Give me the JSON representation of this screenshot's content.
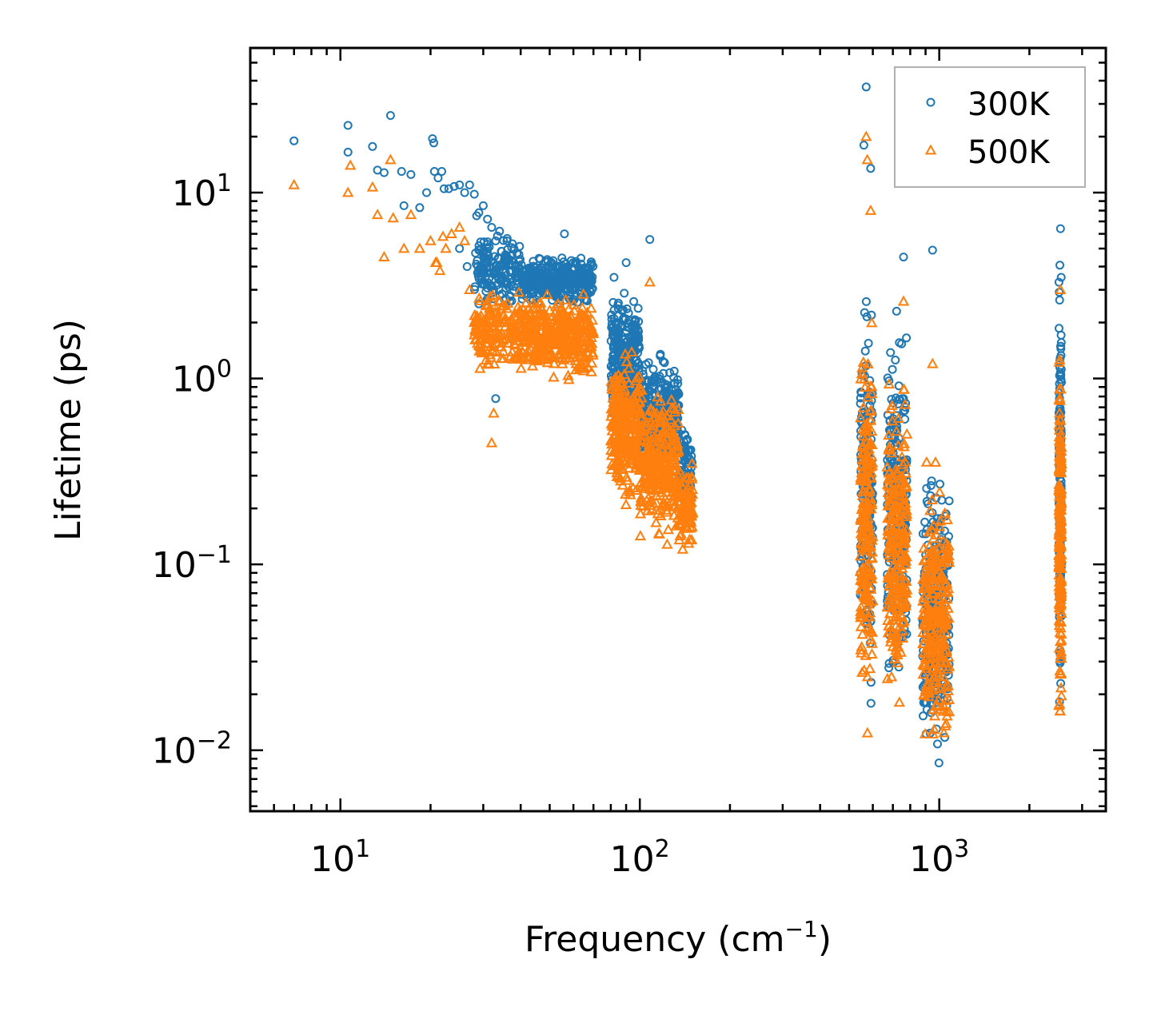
{
  "chart_data": {
    "type": "scatter",
    "title": "",
    "xlabel": {
      "base": "Frequency (cm",
      "sup": "−1",
      "tail": ")"
    },
    "ylabel": "Lifetime (ps)",
    "xscale": "log",
    "yscale": "log",
    "xlim": [
      5,
      3600
    ],
    "ylim": [
      0.0047,
      60
    ],
    "xticks": [
      {
        "value": 10,
        "base": "10",
        "exp": "1"
      },
      {
        "value": 100,
        "base": "10",
        "exp": "2"
      },
      {
        "value": 1000,
        "base": "10",
        "exp": "3"
      }
    ],
    "yticks": [
      {
        "value": 10,
        "base": "10",
        "exp": "1"
      },
      {
        "value": 1,
        "base": "10",
        "exp": "0"
      },
      {
        "value": 0.1,
        "base": "10",
        "exp": "−1"
      },
      {
        "value": 0.01,
        "base": "10",
        "exp": "−2"
      }
    ],
    "legend": {
      "position": "top-right"
    },
    "series": [
      {
        "name": "300K",
        "marker": "circle",
        "color": "#1f77b4",
        "points": [
          [
            7.0,
            19.0
          ],
          [
            10.6,
            23.0
          ],
          [
            10.6,
            16.5
          ],
          [
            12.8,
            17.7
          ],
          [
            13.3,
            13.2
          ],
          [
            14.0,
            12.8
          ],
          [
            14.7,
            26.0
          ],
          [
            16.0,
            13.0
          ],
          [
            16.3,
            8.5
          ],
          [
            17.2,
            12.5
          ],
          [
            18.4,
            8.3
          ],
          [
            19.4,
            10.0
          ],
          [
            20.3,
            19.5
          ],
          [
            20.5,
            18.5
          ],
          [
            20.6,
            13.0
          ],
          [
            21.2,
            12.0
          ],
          [
            21.8,
            13.0
          ],
          [
            22.2,
            10.5
          ],
          [
            23.0,
            10.5
          ],
          [
            24.0,
            10.8
          ],
          [
            25.0,
            11.0
          ],
          [
            26.0,
            10.0
          ],
          [
            27.0,
            11.0
          ],
          [
            28.0,
            9.8
          ],
          [
            28.5,
            7.5
          ],
          [
            29.0,
            7.8
          ],
          [
            30.0,
            8.5
          ],
          [
            31.0,
            7.2
          ],
          [
            32.0,
            6.5
          ],
          [
            33.0,
            5.5
          ],
          [
            34.0,
            6.2
          ],
          [
            36.0,
            5.5
          ],
          [
            38.0,
            5.0
          ],
          [
            33.0,
            0.78
          ],
          [
            25.0,
            5.0
          ],
          [
            26.5,
            4.0
          ],
          [
            30.5,
            3.5
          ],
          [
            32.5,
            3.0
          ]
        ],
        "bands": [
          {
            "x_min": 28,
            "x_max": 40,
            "y_min": 2.2,
            "y_max": 6.5,
            "count": 160
          },
          {
            "x_min": 40,
            "x_max": 70,
            "y_min": 2.4,
            "y_max": 4.8,
            "count": 380
          },
          {
            "x_min": 80,
            "x_max": 100,
            "y_min": 0.45,
            "y_max": 3.3,
            "count": 280
          },
          {
            "x_min": 100,
            "x_max": 135,
            "y_min": 0.3,
            "y_max": 1.5,
            "count": 300
          },
          {
            "x_min": 135,
            "x_max": 150,
            "y_min": 0.15,
            "y_max": 0.65,
            "count": 80
          },
          {
            "x_min": 545,
            "x_max": 600,
            "y_min": 0.012,
            "y_max": 4.7,
            "count": 180
          },
          {
            "x_min": 670,
            "x_max": 780,
            "y_min": 0.014,
            "y_max": 2.7,
            "count": 230
          },
          {
            "x_min": 880,
            "x_max": 1080,
            "y_min": 0.0065,
            "y_max": 0.5,
            "count": 260
          },
          {
            "x_min": 2510,
            "x_max": 2560,
            "y_min": 0.009,
            "y_max": 6.3,
            "count": 170
          }
        ],
        "extra_points": [
          [
            56,
            6.0
          ],
          [
            108,
            5.6
          ],
          [
            90,
            4.2
          ],
          [
            82,
            3.5
          ],
          [
            570,
            37
          ],
          [
            590,
            13.5
          ],
          [
            560,
            18
          ],
          [
            720,
            2.3
          ],
          [
            760,
            4.5
          ],
          [
            950,
            4.9
          ],
          [
            2540,
            6.4
          ]
        ]
      },
      {
        "name": "500K",
        "marker": "triangle",
        "color": "#ff7f0e",
        "points": [
          [
            7.0,
            11.0
          ],
          [
            10.6,
            10.0
          ],
          [
            10.8,
            14.0
          ],
          [
            12.8,
            10.7
          ],
          [
            13.3,
            7.6
          ],
          [
            14.0,
            4.5
          ],
          [
            14.7,
            15.0
          ],
          [
            15.0,
            7.3
          ],
          [
            16.3,
            5.0
          ],
          [
            17.2,
            7.6
          ],
          [
            18.4,
            5.0
          ],
          [
            20.0,
            5.5
          ],
          [
            21.0,
            4.2
          ],
          [
            22.0,
            5.8
          ],
          [
            22.5,
            5.0
          ],
          [
            23.5,
            6.0
          ],
          [
            25.0,
            6.5
          ],
          [
            26.0,
            5.5
          ],
          [
            27.0,
            3.0
          ],
          [
            28.0,
            2.0
          ],
          [
            29.0,
            1.5
          ],
          [
            30.0,
            2.0
          ],
          [
            31.0,
            1.2
          ],
          [
            32.0,
            0.45
          ],
          [
            32.5,
            0.65
          ],
          [
            21.5,
            3.8
          ],
          [
            20.8,
            4.2
          ]
        ],
        "bands": [
          {
            "x_min": 28,
            "x_max": 40,
            "y_min": 1.0,
            "y_max": 3.3,
            "count": 170
          },
          {
            "x_min": 40,
            "x_max": 70,
            "y_min": 0.9,
            "y_max": 3.2,
            "count": 380
          },
          {
            "x_min": 80,
            "x_max": 100,
            "y_min": 0.18,
            "y_max": 1.6,
            "count": 280
          },
          {
            "x_min": 100,
            "x_max": 135,
            "y_min": 0.12,
            "y_max": 1.0,
            "count": 300
          },
          {
            "x_min": 135,
            "x_max": 150,
            "y_min": 0.1,
            "y_max": 0.4,
            "count": 80
          },
          {
            "x_min": 545,
            "x_max": 600,
            "y_min": 0.01,
            "y_max": 2.8,
            "count": 200
          },
          {
            "x_min": 670,
            "x_max": 780,
            "y_min": 0.012,
            "y_max": 1.4,
            "count": 240
          },
          {
            "x_min": 880,
            "x_max": 1080,
            "y_min": 0.007,
            "y_max": 0.38,
            "count": 270
          },
          {
            "x_min": 2510,
            "x_max": 2560,
            "y_min": 0.008,
            "y_max": 3.1,
            "count": 180
          }
        ],
        "extra_points": [
          [
            108,
            3.3
          ],
          [
            570,
            20
          ],
          [
            575,
            15
          ],
          [
            590,
            8.0
          ],
          [
            760,
            2.6
          ],
          [
            950,
            1.2
          ],
          [
            2540,
            3.0
          ]
        ]
      }
    ]
  }
}
